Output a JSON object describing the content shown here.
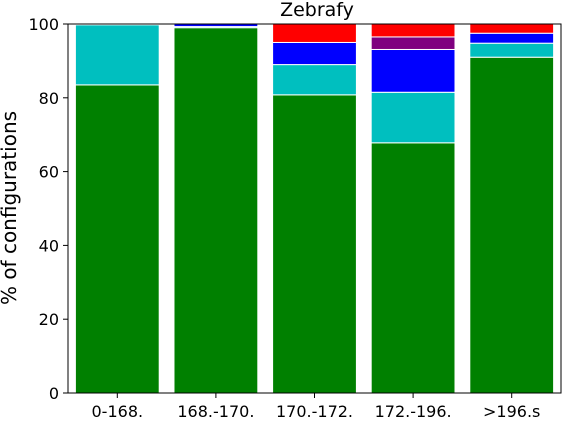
{
  "chart_data": {
    "type": "bar",
    "stacked": true,
    "title": "Zebrafy",
    "xlabel": "",
    "ylabel": "% of configurations",
    "ylim": [
      0,
      100
    ],
    "yticks": [
      0,
      20,
      40,
      60,
      80,
      100
    ],
    "categories": [
      "0-168.",
      "168.-170.",
      "170.-172.",
      "172.-196.",
      ">196.s"
    ],
    "series": [
      {
        "color": "#008000",
        "values": [
          83.5,
          99.0,
          80.8,
          67.8,
          91.0
        ]
      },
      {
        "color": "#00BFBF",
        "values": [
          16.3,
          0.3,
          8.2,
          13.7,
          3.8
        ]
      },
      {
        "color": "#0000FF",
        "values": [
          0.2,
          0.7,
          6.0,
          11.6,
          2.7
        ]
      },
      {
        "color": "#7F007F",
        "values": [
          0,
          0,
          0,
          3.4,
          0
        ]
      },
      {
        "color": "#FF0000",
        "values": [
          0,
          0,
          5.0,
          3.5,
          2.5
        ]
      }
    ],
    "grid": false,
    "legend": "none"
  }
}
